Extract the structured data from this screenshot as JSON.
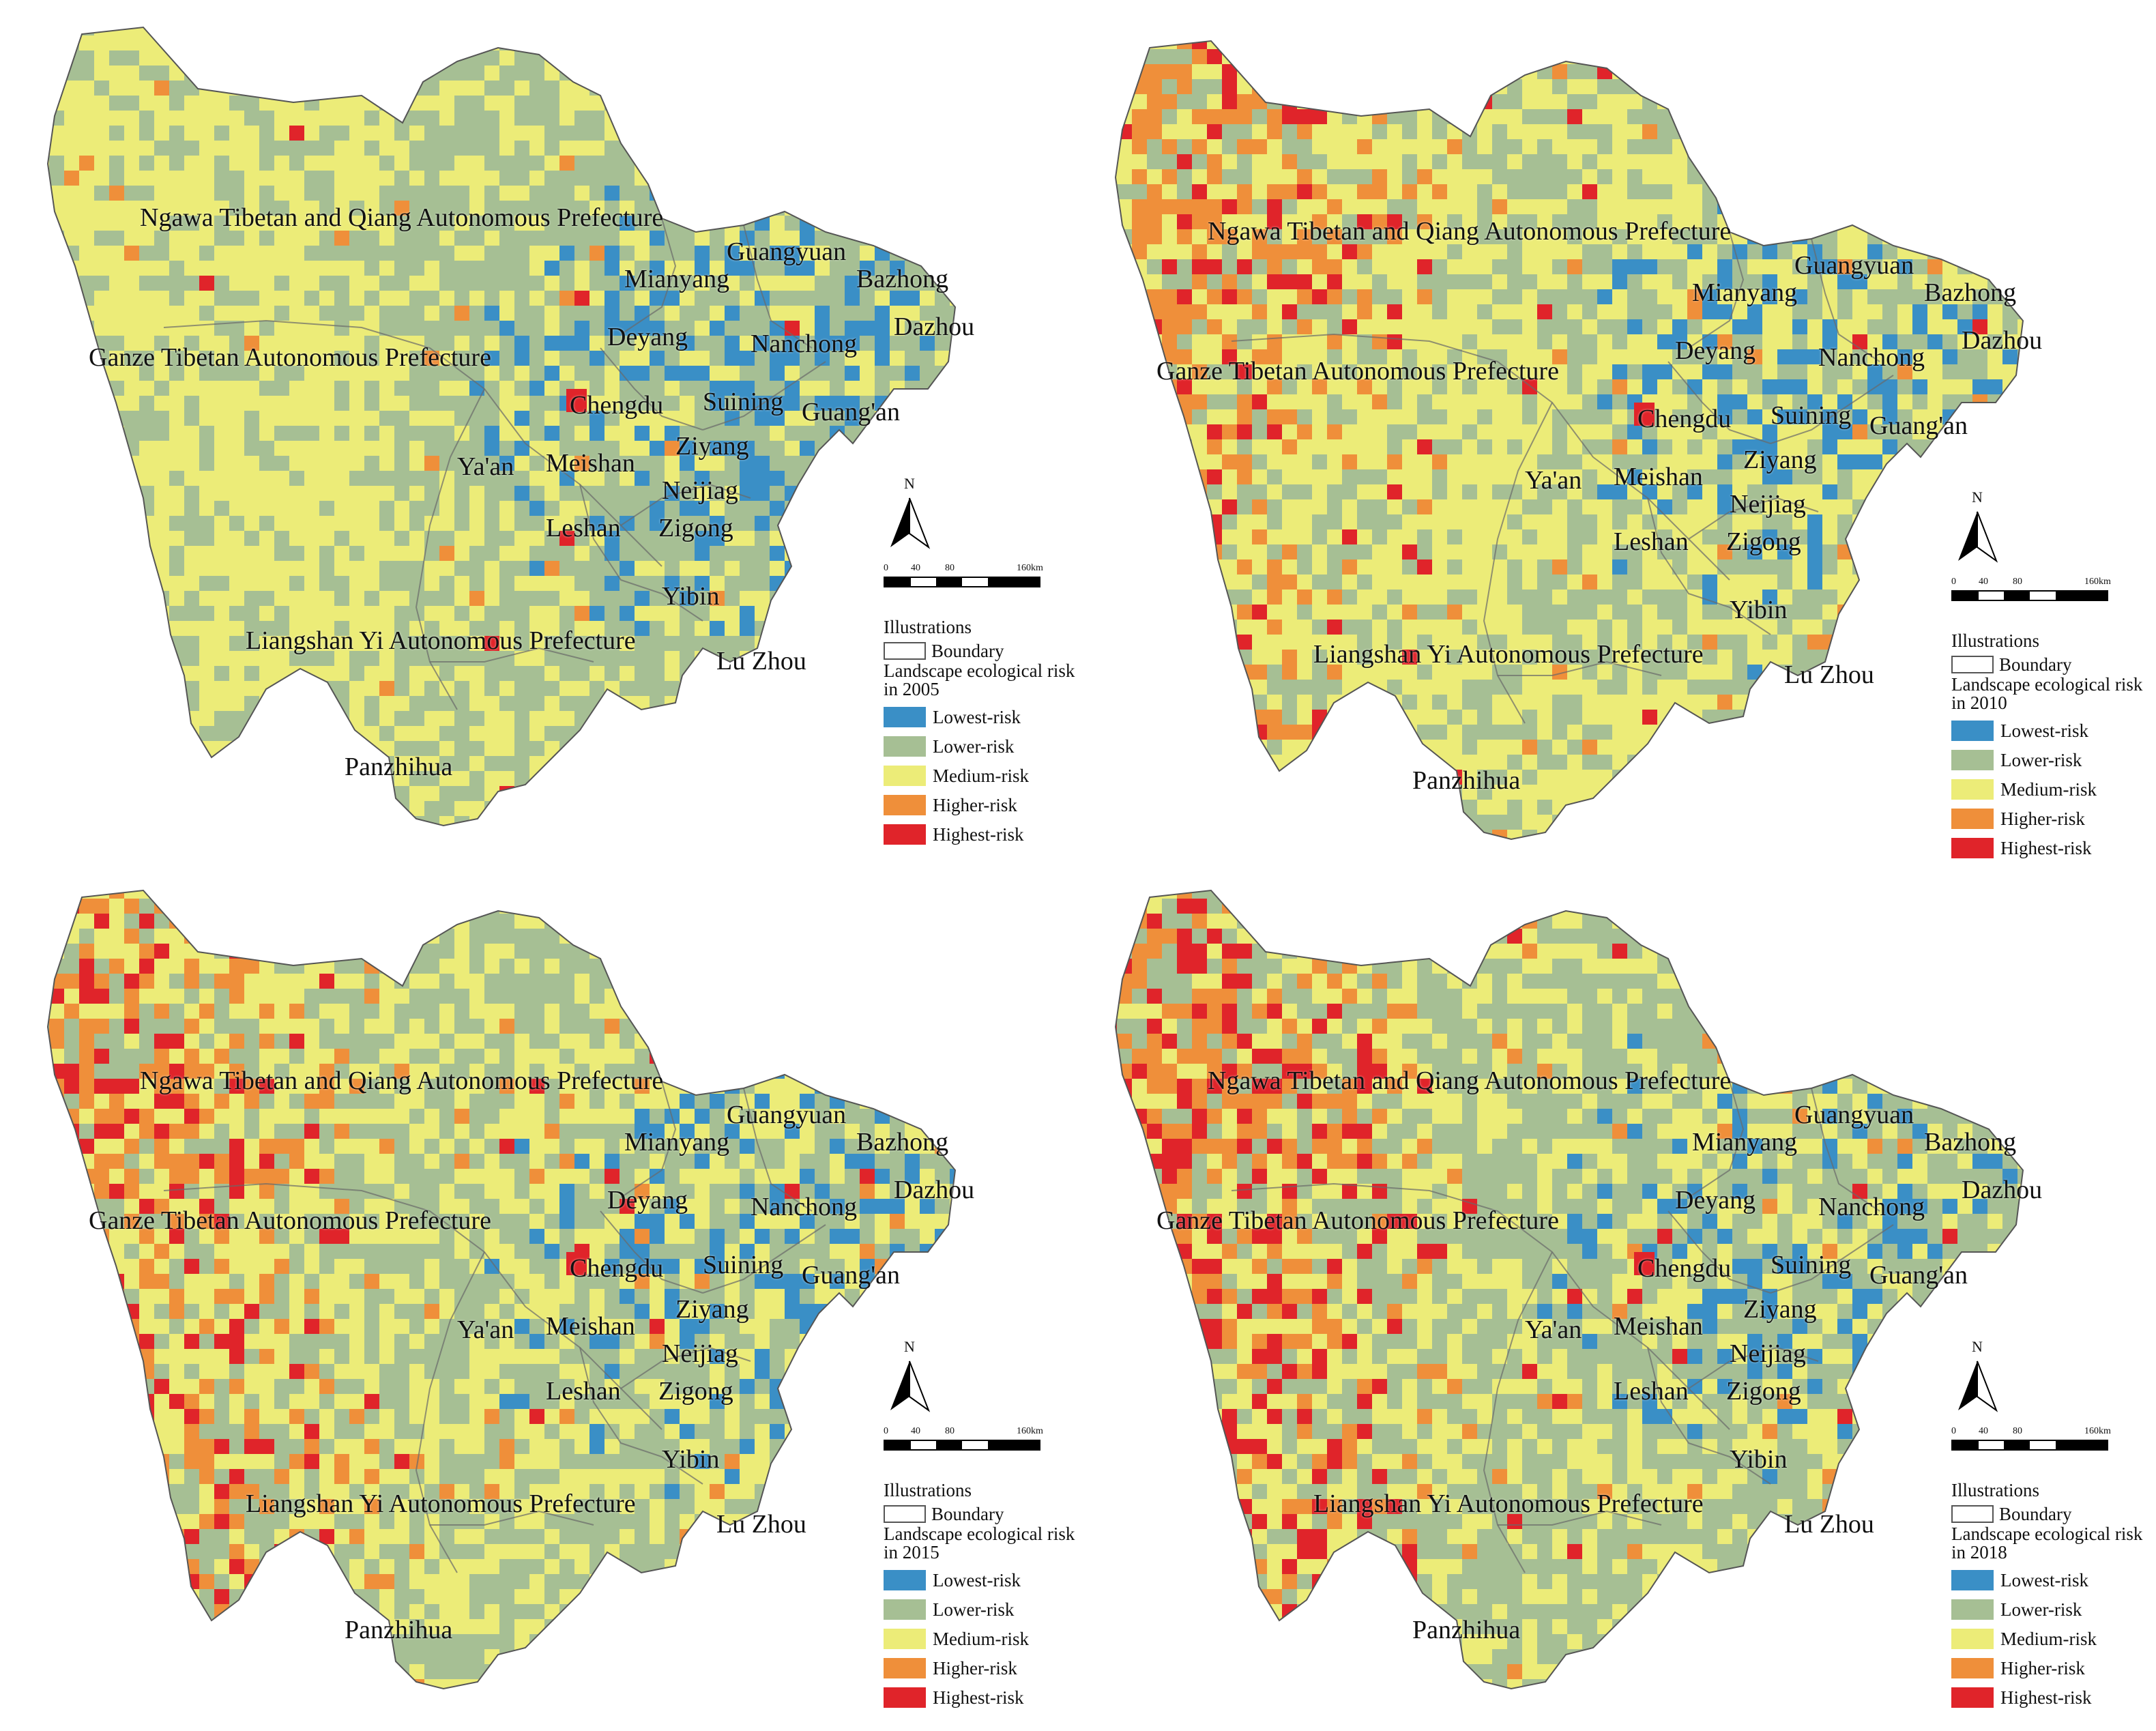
{
  "legend_common": {
    "illustrations": "Illustrations",
    "boundary": "Boundary",
    "items": [
      {
        "label": "Lowest-risk",
        "color": "#3a8fc6"
      },
      {
        "label": "Lower-risk",
        "color": "#a6bf94"
      },
      {
        "label": "Medium-risk",
        "color": "#ecec78"
      },
      {
        "label": "Higher-risk",
        "color": "#ef8f3a"
      },
      {
        "label": "Highest-risk",
        "color": "#e0242a"
      }
    ]
  },
  "north_label": "N",
  "scale_ticks": [
    "0",
    "40",
    "80",
    "160km"
  ],
  "panels": [
    {
      "year": "2005",
      "legend_title": "Landscape ecological risk in 2005",
      "places": [
        "Ngawa Tibetan and Qiang Autonomous Prefecture",
        "Guangyuan",
        "Mianyang",
        "Bazhong",
        "Dazhou",
        "Deyang",
        "Nanchong",
        "Ganze Tibetan Autonomous Prefecture",
        "Chengdu",
        "Suining",
        "Guang'an",
        "Ya'an",
        "Meishan",
        "Ziyang",
        "Neijiag",
        "Leshan",
        "Zigong",
        "Yibin",
        "Liangshan Yi Autonomous Prefecture",
        "Lu Zhou",
        "Panzhihua"
      ]
    },
    {
      "year": "2010",
      "legend_title": "Landscape ecological risk in 2010",
      "places": [
        "Ngawa Tibetan and Qiang Autonomous Prefecture",
        "Guangyuan",
        "Mianyang",
        "Bazhong",
        "Dazhou",
        "Deyang",
        "Nanchong",
        "Ganze Tibetan Autonomous Prefecture",
        "Chengdu",
        "Suining",
        "Guang'an",
        "Ya'an",
        "Meishan",
        "Ziyang",
        "Neijiag",
        "Leshan",
        "Zigong",
        "Yibin",
        "Liangshan Yi Autonomous Prefecture",
        "Lu Zhou",
        "Panzhihua"
      ]
    },
    {
      "year": "2015",
      "legend_title": "Landscape ecological risk in 2015",
      "places": [
        "Ngawa Tibetan and Qiang Autonomous Prefecture",
        "Guangyuan",
        "Mianyang",
        "Bazhong",
        "Dazhou",
        "Deyang",
        "Nanchong",
        "Ganze Tibetan Autonomous Prefecture",
        "Chengdu",
        "Suining",
        "Guang'an",
        "Ya'an",
        "Meishan",
        "Ziyang",
        "Neijiag",
        "Leshan",
        "Zigong",
        "Yibin",
        "Liangshan Yi Autonomous Prefecture",
        "Lu Zhou",
        "Panzhihua"
      ]
    },
    {
      "year": "2018",
      "legend_title": "Landscape ecological risk in 2018",
      "places": [
        "Ngawa Tibetan and Qiang Autonomous Prefecture",
        "Guangyuan",
        "Mianyang",
        "Bazhong",
        "Dazhou",
        "Deyang",
        "Nanchong",
        "Ganze Tibetan Autonomous Prefecture",
        "Chengdu",
        "Suining",
        "Guang'an",
        "Ya'an",
        "Meishan",
        "Ziyang",
        "Neijiag",
        "Leshan",
        "Zigong",
        "Yibin",
        "Liangshan Yi Autonomous Prefecture",
        "Lu Zhou",
        "Panzhihua"
      ]
    }
  ]
}
